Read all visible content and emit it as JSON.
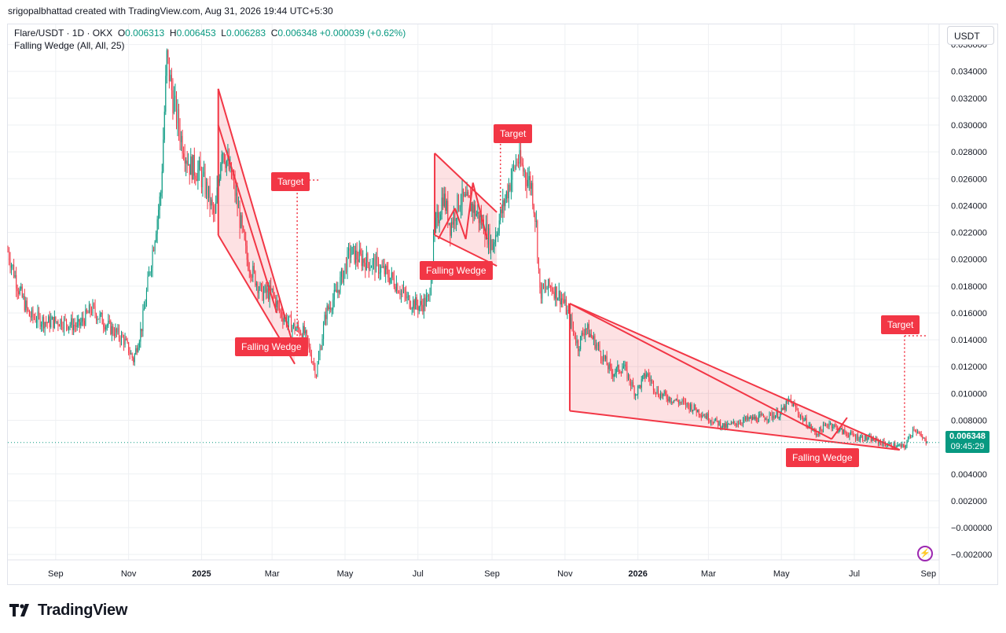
{
  "header": {
    "credit": "srigopalbhattad created with TradingView.com, Aug 31, 2026 19:44 UTC+5:30"
  },
  "legend": {
    "symbol": "Flare/USDT · 1D · OKX",
    "open_label": "O",
    "open": "0.006313",
    "high_label": "H",
    "high": "0.006453",
    "low_label": "L",
    "low": "0.006283",
    "close_label": "C",
    "close": "0.006348",
    "change": "+0.000039 (+0.62%)",
    "indicator": "Falling Wedge (All, All, 25)"
  },
  "currency_button": "USDT",
  "last_price": {
    "price": "0.006348",
    "countdown": "09:45:29"
  },
  "colors": {
    "up": "#089981",
    "down": "#f23645",
    "pattern": "#f23645",
    "pattern_fill": "#f23645"
  },
  "icons": [
    "tradingview-logo-icon",
    "flash-icon"
  ],
  "footer": {
    "brand": "TradingView"
  },
  "pattern_labels": [
    "Falling Wedge",
    "Target",
    "Falling Wedge",
    "Target",
    "Falling Wedge",
    "Target"
  ],
  "chart_data": {
    "type": "candlestick",
    "title": "Flare/USDT · 1D · OKX",
    "y_ticks": [
      "0.036000",
      "0.034000",
      "0.032000",
      "0.030000",
      "0.028000",
      "0.026000",
      "0.024000",
      "0.022000",
      "0.020000",
      "0.018000",
      "0.016000",
      "0.014000",
      "0.012000",
      "0.010000",
      "0.008000",
      "0.006000",
      "0.004000",
      "0.002000",
      "−0.000000",
      "−0.002000"
    ],
    "y_range": [
      -0.0024,
      0.0375
    ],
    "x_ticks": [
      "Sep",
      "Nov",
      "2025",
      "Mar",
      "May",
      "Jul",
      "Sep",
      "Nov",
      "2026",
      "Mar",
      "May",
      "Jul",
      "Sep"
    ],
    "x_range": [
      "2024-07-23",
      "2026-09-10"
    ],
    "grid": true,
    "price_path": [
      [
        "2024-07-23",
        0.0206
      ],
      [
        "2024-08-01",
        0.0178
      ],
      [
        "2024-08-10",
        0.0158
      ],
      [
        "2024-08-25",
        0.0153
      ],
      [
        "2024-09-05",
        0.0154
      ],
      [
        "2024-09-20",
        0.015
      ],
      [
        "2024-10-01",
        0.0163
      ],
      [
        "2024-10-15",
        0.015
      ],
      [
        "2024-10-28",
        0.014
      ],
      [
        "2024-11-05",
        0.0125
      ],
      [
        "2024-11-12",
        0.015
      ],
      [
        "2024-11-20",
        0.02
      ],
      [
        "2024-11-28",
        0.025
      ],
      [
        "2024-12-03",
        0.035
      ],
      [
        "2024-12-08",
        0.032
      ],
      [
        "2024-12-15",
        0.029
      ],
      [
        "2024-12-22",
        0.027
      ],
      [
        "2024-12-30",
        0.0265
      ],
      [
        "2025-01-06",
        0.025
      ],
      [
        "2025-01-12",
        0.023
      ],
      [
        "2025-01-18",
        0.0285
      ],
      [
        "2025-01-28",
        0.0255
      ],
      [
        "2025-02-08",
        0.02
      ],
      [
        "2025-02-20",
        0.0175
      ],
      [
        "2025-03-01",
        0.0175
      ],
      [
        "2025-03-08",
        0.016
      ],
      [
        "2025-03-18",
        0.015
      ],
      [
        "2025-03-28",
        0.0145
      ],
      [
        "2025-04-07",
        0.0115
      ],
      [
        "2025-04-15",
        0.016
      ],
      [
        "2025-04-24",
        0.0175
      ],
      [
        "2025-05-05",
        0.0205
      ],
      [
        "2025-05-15",
        0.02
      ],
      [
        "2025-05-28",
        0.0195
      ],
      [
        "2025-06-10",
        0.0185
      ],
      [
        "2025-06-22",
        0.017
      ],
      [
        "2025-07-02",
        0.0165
      ],
      [
        "2025-07-10",
        0.017
      ],
      [
        "2025-07-15",
        0.022
      ],
      [
        "2025-07-22",
        0.0248
      ],
      [
        "2025-07-28",
        0.0225
      ],
      [
        "2025-08-05",
        0.0245
      ],
      [
        "2025-08-15",
        0.024
      ],
      [
        "2025-08-25",
        0.0225
      ],
      [
        "2025-09-01",
        0.021
      ],
      [
        "2025-09-08",
        0.0232
      ],
      [
        "2025-09-15",
        0.0255
      ],
      [
        "2025-09-22",
        0.0275
      ],
      [
        "2025-09-28",
        0.0265
      ],
      [
        "2025-10-04",
        0.0255
      ],
      [
        "2025-10-08",
        0.0225
      ],
      [
        "2025-10-11",
        0.0175
      ],
      [
        "2025-10-20",
        0.018
      ],
      [
        "2025-10-30",
        0.017
      ],
      [
        "2025-11-05",
        0.0155
      ],
      [
        "2025-11-12",
        0.0135
      ],
      [
        "2025-11-18",
        0.015
      ],
      [
        "2025-11-28",
        0.0135
      ],
      [
        "2025-12-10",
        0.0115
      ],
      [
        "2025-12-20",
        0.012
      ],
      [
        "2025-12-30",
        0.01
      ],
      [
        "2026-01-08",
        0.0115
      ],
      [
        "2026-01-18",
        0.01
      ],
      [
        "2026-02-01",
        0.0095
      ],
      [
        "2026-02-15",
        0.009
      ],
      [
        "2026-03-01",
        0.0082
      ],
      [
        "2026-03-15",
        0.0075
      ],
      [
        "2026-03-30",
        0.008
      ],
      [
        "2026-04-15",
        0.0082
      ],
      [
        "2026-04-30",
        0.0085
      ],
      [
        "2026-05-08",
        0.0095
      ],
      [
        "2026-05-18",
        0.0082
      ],
      [
        "2026-05-30",
        0.007
      ],
      [
        "2026-06-10",
        0.0078
      ],
      [
        "2026-06-20",
        0.0072
      ],
      [
        "2026-07-01",
        0.0068
      ],
      [
        "2026-07-15",
        0.0066
      ],
      [
        "2026-07-28",
        0.0062
      ],
      [
        "2026-08-12",
        0.006
      ],
      [
        "2026-08-20",
        0.0075
      ],
      [
        "2026-08-25",
        0.0068
      ],
      [
        "2026-08-31",
        0.006348
      ]
    ],
    "patterns": [
      {
        "name": "Falling Wedge",
        "upper": [
          [
            "2025-01-15",
            0.0327
          ],
          [
            "2025-03-20",
            0.0132
          ]
        ],
        "lower": [
          [
            "2025-01-15",
            0.0218
          ],
          [
            "2025-03-20",
            0.0122
          ]
        ],
        "inner_lines": [
          [
            [
              "2025-01-15",
              0.03
            ],
            [
              "2025-03-05",
              0.016
            ]
          ]
        ],
        "breakout": [
          "2025-03-22",
          0.014
        ],
        "target_price": 0.0259,
        "target_date": "2025-03-22"
      },
      {
        "name": "Falling Wedge",
        "upper": [
          [
            "2025-07-15",
            0.0279
          ],
          [
            "2025-09-05",
            0.0235
          ]
        ],
        "lower": [
          [
            "2025-07-15",
            0.0218
          ],
          [
            "2025-09-05",
            0.0195
          ]
        ],
        "inner_lines": [
          [
            [
              "2025-07-18",
              0.0215
            ],
            [
              "2025-08-01",
              0.0238
            ],
            [
              "2025-08-10",
              0.0215
            ],
            [
              "2025-08-16",
              0.0257
            ],
            [
              "2025-08-28",
              0.0215
            ]
          ]
        ],
        "breakout": [
          "2025-09-08",
          0.0238
        ],
        "target_price": 0.0295,
        "target_date": "2025-09-08"
      },
      {
        "name": "Falling Wedge",
        "upper": [
          [
            "2025-11-05",
            0.0167
          ],
          [
            "2026-08-08",
            0.0058
          ]
        ],
        "lower": [
          [
            "2025-11-05",
            0.0087
          ],
          [
            "2026-08-08",
            0.0058
          ]
        ],
        "inner_lines": [
          [
            [
              "2025-11-05",
              0.0167
            ],
            [
              "2026-06-12",
              0.0066
            ],
            [
              "2026-06-25",
              0.0082
            ]
          ]
        ],
        "breakout": [
          "2026-08-12",
          0.006
        ],
        "target_price": 0.0143,
        "target_date": "2026-08-12"
      }
    ]
  }
}
